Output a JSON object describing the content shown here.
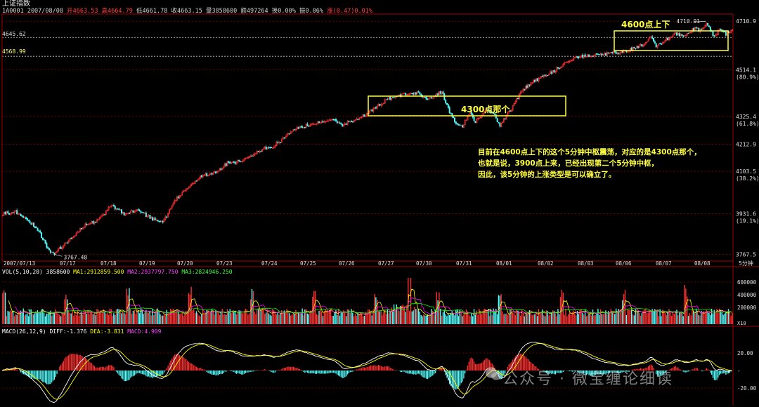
{
  "title": "上证指数",
  "info": {
    "code_date": "1A0001 2007/08/08",
    "open": "开4663.53",
    "high": "高4664.79",
    "low": "低4661.78",
    "close": "收4663.15",
    "volume": "量3858600",
    "amount": "额497264",
    "turnover": "换0.00%",
    "amplitude": "振0.06%",
    "change": "涨(0.47)0.01%"
  },
  "levels": {
    "left_top": "4645.62",
    "left_second": "4568.99"
  },
  "volume_panel": {
    "label": "VOL(5,10,20)",
    "value": "3858600",
    "ma1": "MA1:2912859.500",
    "ma2": "MA2:2937797.750",
    "ma3": "MA3:2824946.250"
  },
  "macd_panel": {
    "label": "MACD(26,12,9)",
    "diff": "DIFF:-1.376",
    "dea": "DEA:-3.831",
    "macd": "MACD:4.909"
  },
  "annotations": {
    "box1_label": "4600点上下",
    "box2_label": "4300点那个",
    "note_line1": "目前在4600点上下的这个5分钟中枢震荡，对应的是4300点那个，",
    "note_line2": "也就是说，3900点上来，已经出现第二个5分钟中枢，",
    "note_line3": "因此，该5分钟的上涨类型是可以确立了。"
  },
  "watermark": "公众号 · 微宝缠论细读",
  "chart_data": {
    "type": "candlestick",
    "timeframe": "5分钟",
    "y_ticks": [
      {
        "value": 4710.9,
        "label": "4710.9",
        "pct": ""
      },
      {
        "value": 4514.1,
        "label": "4514.1",
        "pct": "(80.9%)"
      },
      {
        "value": 4325.4,
        "label": "4325.4",
        "pct": "(61.8%)"
      },
      {
        "value": 4212.9,
        "label": "4212.9",
        "pct": ""
      },
      {
        "value": 4103.5,
        "label": "4103.5",
        "pct": "(38.2%)"
      },
      {
        "value": 3931.6,
        "label": "3931.6",
        "pct": "(19.1%)"
      },
      {
        "value": 3767.5,
        "label": "3767.5",
        "pct": ""
      }
    ],
    "ylim": [
      3740,
      4740
    ],
    "x_labels": [
      "2007/07/13",
      "07/17",
      "07/18",
      "07/19",
      "07/20",
      "07/23",
      "07/24",
      "07/25",
      "07/26",
      "07/27",
      "07/30",
      "07/31",
      "08/01",
      "08/02",
      "08/03",
      "08/06",
      "08/07",
      "08/08"
    ],
    "annot_high": "4710.91",
    "annot_low": "3767.48",
    "anchors": [
      [
        0,
        3930
      ],
      [
        10,
        3940
      ],
      [
        20,
        3905
      ],
      [
        28,
        3860
      ],
      [
        35,
        3790
      ],
      [
        40,
        3768
      ],
      [
        52,
        3830
      ],
      [
        64,
        3885
      ],
      [
        74,
        3905
      ],
      [
        84,
        3965
      ],
      [
        94,
        3932
      ],
      [
        104,
        3945
      ],
      [
        114,
        3915
      ],
      [
        124,
        3895
      ],
      [
        134,
        3990
      ],
      [
        144,
        4040
      ],
      [
        154,
        4085
      ],
      [
        164,
        4095
      ],
      [
        174,
        4135
      ],
      [
        184,
        4145
      ],
      [
        194,
        4175
      ],
      [
        202,
        4195
      ],
      [
        210,
        4205
      ],
      [
        216,
        4230
      ],
      [
        226,
        4275
      ],
      [
        236,
        4290
      ],
      [
        244,
        4300
      ],
      [
        254,
        4315
      ],
      [
        262,
        4290
      ],
      [
        272,
        4310
      ],
      [
        282,
        4335
      ],
      [
        292,
        4375
      ],
      [
        302,
        4405
      ],
      [
        312,
        4415
      ],
      [
        322,
        4420
      ],
      [
        328,
        4395
      ],
      [
        334,
        4410
      ],
      [
        340,
        4425
      ],
      [
        346,
        4345
      ],
      [
        352,
        4290
      ],
      [
        356,
        4285
      ],
      [
        362,
        4345
      ],
      [
        366,
        4300
      ],
      [
        374,
        4355
      ],
      [
        380,
        4340
      ],
      [
        385,
        4290
      ],
      [
        393,
        4350
      ],
      [
        402,
        4430
      ],
      [
        412,
        4470
      ],
      [
        422,
        4495
      ],
      [
        432,
        4528
      ],
      [
        442,
        4562
      ],
      [
        452,
        4572
      ],
      [
        462,
        4575
      ],
      [
        472,
        4582
      ],
      [
        482,
        4588
      ],
      [
        490,
        4602
      ],
      [
        496,
        4615
      ],
      [
        502,
        4648
      ],
      [
        506,
        4606
      ],
      [
        512,
        4628
      ],
      [
        520,
        4660
      ],
      [
        528,
        4652
      ],
      [
        536,
        4682
      ],
      [
        540,
        4675
      ],
      [
        545,
        4706
      ],
      [
        550,
        4655
      ],
      [
        556,
        4675
      ],
      [
        560,
        4660
      ],
      [
        566,
        4675
      ]
    ],
    "y_ticks_vol": [
      "600000",
      "400000",
      "200000"
    ],
    "vol_unit": "X10",
    "y_ticks_macd": [
      "20.00",
      "-",
      "-20.00"
    ],
    "colors": {
      "up": "#ff3232",
      "down": "#54fcfc",
      "ma1": "#ffffff",
      "ma2": "#ffff00",
      "ma3": "#ff00ff",
      "ma4": "#00ff00",
      "grid": "#8b0000",
      "annotation": "#ffff40"
    }
  }
}
